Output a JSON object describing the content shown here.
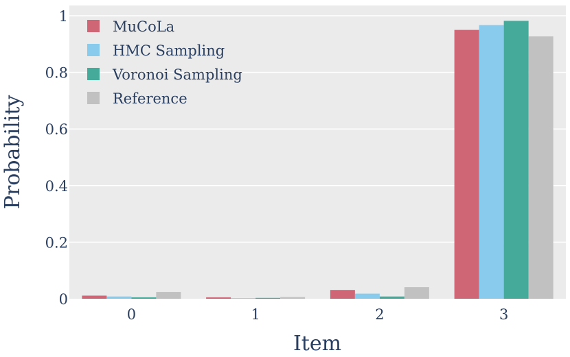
{
  "chart_data": {
    "type": "bar",
    "xlabel": "Item",
    "ylabel": "Probability",
    "categories": [
      "0",
      "1",
      "2",
      "3"
    ],
    "ylim": [
      0,
      1.0
    ],
    "yticks": [
      0,
      0.2,
      0.4,
      0.6,
      0.8,
      1
    ],
    "ytick_labels": [
      "0",
      "0.2",
      "0.4",
      "0.6",
      "0.8",
      "1"
    ],
    "grid": true,
    "legend_position": "top-left",
    "background": "#ebebeb",
    "series": [
      {
        "name": "MuCoLa",
        "color": "#cf6675",
        "values": [
          0.011,
          0.005,
          0.031,
          0.95
        ]
      },
      {
        "name": "HMC Sampling",
        "color": "#88cbed",
        "values": [
          0.008,
          0.002,
          0.018,
          0.967
        ]
      },
      {
        "name": "Voronoi Sampling",
        "color": "#45aa99",
        "values": [
          0.005,
          0.003,
          0.008,
          0.982
        ]
      },
      {
        "name": "Reference",
        "color": "#c1c1c1",
        "values": [
          0.024,
          0.006,
          0.041,
          0.927
        ]
      }
    ]
  }
}
